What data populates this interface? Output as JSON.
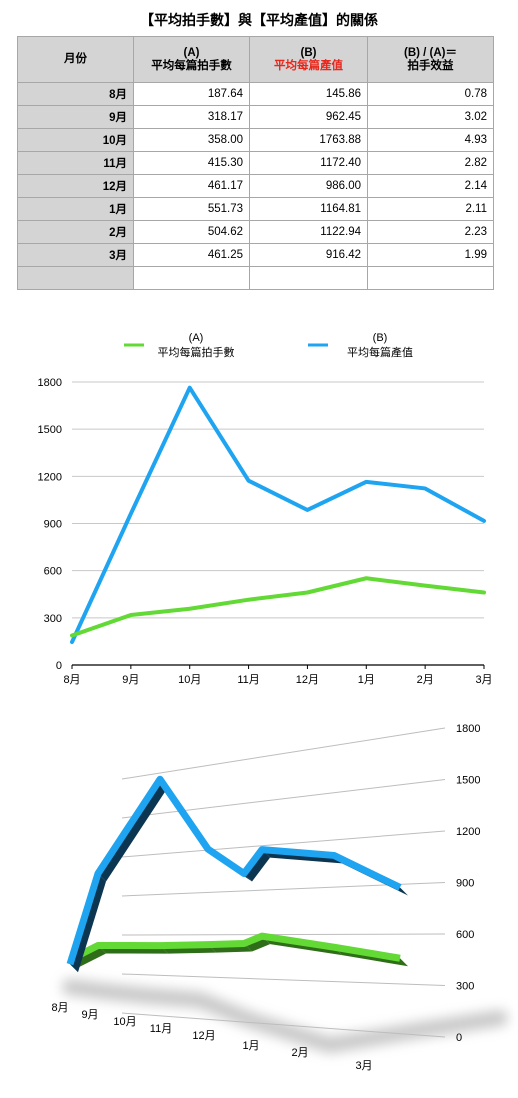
{
  "title": "【平均拍手數】與【平均產值】的關係",
  "table": {
    "headers": {
      "month": "月份",
      "a_code": "(A)",
      "a_name": "平均每篇拍手數",
      "b_code": "(B)",
      "b_name": "平均每篇產值",
      "ratio_code": "(B) / (A)＝",
      "ratio_name": "拍手效益"
    },
    "rows": [
      {
        "month": "8月",
        "a": "187.64",
        "b": "145.86",
        "ratio": "0.78"
      },
      {
        "month": "9月",
        "a": "318.17",
        "b": "962.45",
        "ratio": "3.02"
      },
      {
        "month": "10月",
        "a": "358.00",
        "b": "1763.88",
        "ratio": "4.93"
      },
      {
        "month": "11月",
        "a": "415.30",
        "b": "1172.40",
        "ratio": "2.82"
      },
      {
        "month": "12月",
        "a": "461.17",
        "b": "986.00",
        "ratio": "2.14"
      },
      {
        "month": "1月",
        "a": "551.73",
        "b": "1164.81",
        "ratio": "2.11"
      },
      {
        "month": "2月",
        "a": "504.62",
        "b": "1122.94",
        "ratio": "2.23"
      },
      {
        "month": "3月",
        "a": "461.25",
        "b": "916.42",
        "ratio": "1.99"
      }
    ]
  },
  "colors": {
    "series_a": "#62d935",
    "series_b": "#1ea4f0",
    "highlight_text": "#e8271b"
  },
  "chart_data": [
    {
      "type": "line",
      "categories": [
        "8月",
        "9月",
        "10月",
        "11月",
        "12月",
        "1月",
        "2月",
        "3月"
      ],
      "series": [
        {
          "code": "(A)",
          "name": "平均每篇拍手數",
          "values": [
            187.64,
            318.17,
            358.0,
            415.3,
            461.17,
            551.73,
            504.62,
            461.25
          ]
        },
        {
          "code": "(B)",
          "name": "平均每篇產值",
          "values": [
            145.86,
            962.45,
            1763.88,
            1172.4,
            986.0,
            1164.81,
            1122.94,
            916.42
          ]
        }
      ],
      "yticks": [
        0,
        300,
        600,
        900,
        1200,
        1500,
        1800
      ],
      "ylim": [
        0,
        1800
      ],
      "grid": true,
      "legend": "top"
    },
    {
      "type": "line",
      "style": "3d",
      "categories": [
        "8月",
        "9月",
        "10月",
        "11月",
        "12月",
        "1月",
        "2月",
        "3月"
      ],
      "series": [
        {
          "name": "平均每篇拍手數",
          "values": [
            187.64,
            318.17,
            358.0,
            415.3,
            461.17,
            551.73,
            504.62,
            461.25
          ]
        },
        {
          "name": "平均每篇產值",
          "values": [
            145.86,
            962.45,
            1763.88,
            1172.4,
            986.0,
            1164.81,
            1122.94,
            916.42
          ]
        }
      ],
      "yticks": [
        0,
        300,
        600,
        900,
        1200,
        1500,
        1800
      ],
      "ylim": [
        0,
        1800
      ],
      "grid": true
    }
  ]
}
